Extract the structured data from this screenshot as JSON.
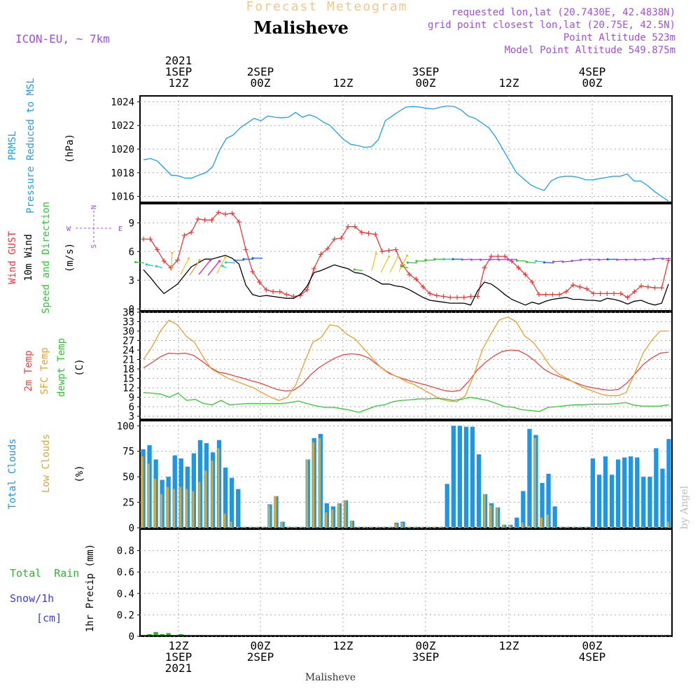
{
  "header": {
    "title": "Forecast Meteogram",
    "location": "Malisheve",
    "model": "ICON-EU, ~ 7km",
    "requested": "requested lon,lat (20.7430E, 42.4838N)",
    "gridpoint": "grid point closest lon,lat (20.75E, 42.5N)",
    "altitude": "Point Altitude 523m",
    "model_altitude": "Model Point Altitude 549.875m",
    "footer_location": "Malisheve",
    "credit": "by Angel"
  },
  "time_axis": {
    "top": [
      {
        "line1": "2021",
        "line2": "1SEP",
        "line3": "12Z"
      },
      {
        "line1": "",
        "line2": "2SEP",
        "line3": "00Z"
      },
      {
        "line1": "",
        "line2": "",
        "line3": "12Z"
      },
      {
        "line1": "",
        "line2": "3SEP",
        "line3": "00Z"
      },
      {
        "line1": "",
        "line2": "",
        "line3": "12Z"
      },
      {
        "line1": "",
        "line2": "4SEP",
        "line3": "00Z"
      }
    ],
    "bottom": [
      {
        "line1": "12Z",
        "line2": "1SEP",
        "line3": "2021"
      },
      {
        "line1": "00Z",
        "line2": "2SEP",
        "line3": ""
      },
      {
        "line1": "12Z",
        "line2": "",
        "line3": ""
      },
      {
        "line1": "00Z",
        "line2": "3SEP",
        "line3": ""
      },
      {
        "line1": "12Z",
        "line2": "",
        "line3": ""
      },
      {
        "line1": "00Z",
        "line2": "4SEP",
        "line3": ""
      }
    ]
  },
  "labels": {
    "pressure_1": "PRMSL",
    "pressure_2": "Pressure Reduced to MSL",
    "pressure_unit": "(hPa)",
    "wind_1": "Wind GUST",
    "wind_2": "10m Wind",
    "wind_3": "Speed and Direction",
    "wind_unit": "(m/s)",
    "compass_n": "N",
    "compass_s": "S",
    "compass_w": "W",
    "compass_e": "E",
    "temp_1": "2m Temp",
    "temp_2": "SFC Temp",
    "temp_3": "dewpt Temp",
    "temp_unit": "(C)",
    "cloud_1": "Total Clouds",
    "cloud_2": "Low Clouds",
    "cloud_unit": "(%)",
    "precip_1": "Total  Rain",
    "precip_2": "Snow/1h",
    "precip_3": "[cm]",
    "precip_unit": "1hr Precip (mm)"
  },
  "colors": {
    "pressure": "#1ea0e6",
    "gust": "#e63c3c",
    "wind": "#000000",
    "temp2m": "#e64646",
    "sfc": "#e6a032",
    "dewpt": "#32c832",
    "total_cloud": "#1e96e6",
    "low_cloud": "#d2aa3c",
    "rain": "#32b432",
    "snow": "#3c3cdc",
    "purple": "#a050dc",
    "title_faint": "#f0c88c"
  },
  "chart_data": [
    {
      "type": "line",
      "title": "PRMSL Pressure Reduced to MSL",
      "ylabel": "(hPa)",
      "ylim": [
        1015.5,
        1024.5
      ],
      "yticks": [
        1016,
        1018,
        1020,
        1022,
        1024
      ],
      "series": [
        {
          "name": "PRMSL",
          "values": [
            1019.1,
            1019.2,
            1019.0,
            1018.4,
            1017.8,
            1017.75,
            1017.55,
            1017.55,
            1017.8,
            1018.0,
            1018.5,
            1019.9,
            1020.9,
            1021.2,
            1021.8,
            1022.2,
            1022.6,
            1022.4,
            1022.8,
            1022.7,
            1022.65,
            1022.7,
            1023.1,
            1022.7,
            1022.9,
            1022.7,
            1022.3,
            1022.0,
            1021.4,
            1020.8,
            1020.4,
            1020.3,
            1020.15,
            1020.2,
            1020.8,
            1022.4,
            1022.8,
            1023.2,
            1023.55,
            1023.6,
            1023.55,
            1023.45,
            1023.4,
            1023.55,
            1023.65,
            1023.6,
            1023.3,
            1022.8,
            1022.6,
            1022.2,
            1021.8,
            1021.0,
            1020.0,
            1019.0,
            1018.0,
            1017.5,
            1017.0,
            1016.7,
            1016.5,
            1017.3,
            1017.6,
            1017.7,
            1017.7,
            1017.6,
            1017.4,
            1017.4,
            1017.5,
            1017.6,
            1017.7,
            1017.7,
            1017.9,
            1017.3,
            1017.3,
            1016.9,
            1016.4,
            1016.0,
            1015.6
          ]
        }
      ]
    },
    {
      "type": "line",
      "title": "Wind GUST / 10m Wind",
      "ylabel": "(m/s)",
      "ylim": [
        -0.2,
        11
      ],
      "yticks": [
        0,
        3,
        6,
        9
      ],
      "series": [
        {
          "name": "Wind GUST",
          "values": [
            7.3,
            7.3,
            6.2,
            5.0,
            4.3,
            5.1,
            7.7,
            8.0,
            9.4,
            9.3,
            9.3,
            10.1,
            9.9,
            10.0,
            9.1,
            6.2,
            3.9,
            2.8,
            2.0,
            1.8,
            1.8,
            1.5,
            1.3,
            1.4,
            2.0,
            4.2,
            5.7,
            6.3,
            7.3,
            7.4,
            8.6,
            8.6,
            8.0,
            7.9,
            7.8,
            6.0,
            6.1,
            6.2,
            4.6,
            3.6,
            3.1,
            2.3,
            1.6,
            1.4,
            1.3,
            1.2,
            1.2,
            1.2,
            1.3,
            1.3,
            4.3,
            5.5,
            5.5,
            5.5,
            5.0,
            4.3,
            3.6,
            2.8,
            1.5,
            1.5,
            1.5,
            1.5,
            1.8,
            2.5,
            2.3,
            2.1,
            1.6,
            1.6,
            1.6,
            1.6,
            1.6,
            1.2,
            1.8,
            2.4,
            2.3,
            2.2,
            2.2,
            5.1
          ]
        },
        {
          "name": "10m Wind",
          "values": [
            4.1,
            3.3,
            2.4,
            1.6,
            2.1,
            2.6,
            3.5,
            4.4,
            4.8,
            5.2,
            5.2,
            5.4,
            5.6,
            5.3,
            4.7,
            2.5,
            1.5,
            1.3,
            1.4,
            1.3,
            1.2,
            1.1,
            1.1,
            1.5,
            2.4,
            3.8,
            4.0,
            4.3,
            4.6,
            4.4,
            4.2,
            3.8,
            3.7,
            3.4,
            3.0,
            2.6,
            2.6,
            2.4,
            2.3,
            2.0,
            1.6,
            1.2,
            0.9,
            0.8,
            0.7,
            0.6,
            0.6,
            0.6,
            0.4,
            1.9,
            2.8,
            2.6,
            2.1,
            1.5,
            1.0,
            0.7,
            0.4,
            0.7,
            0.5,
            0.8,
            1.0,
            1.1,
            1.2,
            1.0,
            1.0,
            0.9,
            0.9,
            0.8,
            1.1,
            1.0,
            0.8,
            0.5,
            0.8,
            0.9,
            0.6,
            0.4,
            0.6,
            2.6
          ]
        }
      ]
    },
    {
      "type": "line",
      "title": "2m Temp / SFC Temp / dewpt Temp",
      "ylabel": "(C)",
      "ylim": [
        2,
        36
      ],
      "yticks": [
        3,
        6,
        9,
        12,
        15,
        18,
        21,
        24,
        27,
        30,
        33,
        36
      ],
      "series": [
        {
          "name": "2m Temp",
          "values": [
            18.3,
            20.0,
            21.8,
            23.0,
            22.8,
            23.0,
            22.3,
            20.5,
            18.5,
            17.0,
            16.5,
            15.7,
            15.0,
            14.2,
            13.5,
            12.5,
            11.5,
            11.0,
            11.2,
            13.0,
            16.0,
            18.3,
            20.0,
            21.5,
            22.5,
            22.8,
            22.5,
            21.5,
            19.5,
            17.5,
            16.0,
            15.0,
            14.2,
            13.5,
            12.8,
            12.0,
            11.2,
            10.8,
            11.2,
            14.0,
            17.5,
            20.0,
            22.0,
            23.5,
            24.0,
            23.8,
            22.5,
            20.5,
            18.0,
            16.5,
            15.5,
            14.5,
            13.5,
            12.5,
            12.0,
            11.5,
            11.2,
            11.5,
            13.5,
            16.5,
            19.5,
            21.5,
            23.0,
            23.3
          ]
        },
        {
          "name": "SFC Temp",
          "values": [
            21.0,
            25.0,
            30.0,
            33.5,
            32.0,
            28.5,
            26.5,
            22.0,
            18.0,
            16.5,
            15.0,
            14.0,
            13.0,
            12.0,
            10.5,
            9.0,
            8.0,
            9.0,
            13.0,
            20.0,
            26.5,
            28.0,
            32.0,
            31.5,
            29.0,
            27.5,
            24.5,
            21.5,
            18.5,
            16.5,
            15.5,
            14.0,
            13.0,
            11.5,
            10.0,
            8.5,
            7.8,
            7.6,
            9.5,
            16.0,
            24.0,
            29.0,
            33.5,
            34.5,
            33.0,
            28.5,
            26.5,
            23.0,
            19.0,
            16.5,
            15.0,
            13.5,
            12.0,
            11.0,
            10.0,
            9.5,
            9.5,
            10.5,
            16.5,
            23.0,
            27.0,
            30.0,
            30.0
          ]
        },
        {
          "name": "dewpt Temp",
          "values": [
            10.5,
            10.3,
            10.0,
            9.0,
            10.3,
            8.0,
            8.3,
            7.0,
            6.6,
            8.0,
            6.6,
            6.8,
            7.0,
            7.0,
            7.0,
            7.0,
            7.0,
            7.3,
            7.8,
            7.0,
            6.3,
            5.8,
            5.8,
            5.4,
            4.9,
            4.2,
            5.2,
            6.2,
            6.6,
            7.6,
            8.0,
            8.2,
            8.5,
            8.5,
            8.6,
            8.5,
            8.0,
            8.4,
            9.0,
            8.5,
            8.0,
            7.0,
            6.0,
            5.8,
            5.0,
            4.8,
            4.5,
            5.8,
            6.0,
            6.3,
            6.6,
            6.6,
            6.8,
            6.8,
            6.8,
            7.0,
            7.3,
            6.5,
            6.2,
            6.2,
            6.2,
            6.6
          ]
        }
      ]
    },
    {
      "type": "bar",
      "title": "Total Clouds / Low Clouds",
      "ylabel": "(%)",
      "ylim": [
        0,
        105
      ],
      "yticks": [
        0,
        25,
        50,
        75,
        100
      ],
      "series": [
        {
          "name": "Total Clouds",
          "values": [
            77,
            81,
            67,
            47,
            50,
            71,
            68,
            60,
            73,
            86,
            83,
            74,
            86,
            59,
            49,
            38,
            1,
            1,
            1,
            1,
            23,
            31,
            6,
            1,
            1,
            1,
            67,
            88,
            92,
            24,
            21,
            24,
            27,
            7,
            1,
            1,
            1,
            1,
            1,
            1,
            5,
            6,
            1,
            1,
            1,
            1,
            1,
            1,
            43,
            100,
            100,
            99,
            99,
            72,
            33,
            24,
            20,
            3,
            3,
            10,
            36,
            97,
            91,
            44,
            53,
            21,
            1,
            1,
            1,
            1,
            1,
            68,
            52,
            70,
            52,
            67,
            69,
            70,
            69,
            50,
            50,
            78,
            58,
            87
          ]
        },
        {
          "name": "Low Clouds",
          "values": [
            70,
            63,
            48,
            33,
            40,
            38,
            40,
            38,
            36,
            45,
            56,
            66,
            78,
            14,
            6,
            1,
            1,
            1,
            1,
            1,
            22,
            31,
            6,
            1,
            1,
            1,
            67,
            84,
            88,
            15,
            18,
            24,
            27,
            7,
            1,
            1,
            1,
            1,
            1,
            1,
            4,
            5,
            1,
            1,
            1,
            1,
            1,
            1,
            1,
            1,
            1,
            1,
            1,
            1,
            33,
            22,
            20,
            3,
            3,
            1,
            5,
            2,
            88,
            10,
            13,
            1,
            1,
            1,
            1,
            1,
            1,
            1,
            1,
            1,
            1,
            1,
            1,
            1,
            1,
            1,
            1,
            1,
            1,
            6
          ]
        }
      ]
    },
    {
      "type": "bar",
      "title": "1hr Precip",
      "ylabel": "1hr Precip (mm)",
      "ylim": [
        0,
        1.0
      ],
      "yticks": [
        0,
        0.2,
        0.4,
        0.6,
        0.8
      ],
      "series": [
        {
          "name": "Total Rain",
          "values": [
            0.0,
            0.02,
            0.04,
            0.02,
            0.03,
            0.0,
            0.02,
            0.0,
            0.0,
            0.0,
            0.0,
            0.0,
            0.0,
            0.0,
            0.0,
            0.0,
            0.0,
            0.0,
            0.0,
            0.0,
            0.0,
            0.0,
            0.0,
            0.0,
            0.0,
            0.0,
            0.0,
            0.0,
            0.0,
            0.0,
            0.0,
            0.0,
            0.0,
            0.0,
            0.0,
            0.0,
            0.0,
            0.0,
            0.0,
            0.0,
            0.0,
            0.0,
            0.0,
            0.0,
            0.0,
            0.0,
            0.0,
            0.0,
            0.0,
            0.0,
            0.0,
            0.0,
            0.0,
            0.0,
            0.0,
            0.0,
            0.0,
            0.0,
            0.0,
            0.0,
            0.0,
            0.0,
            0.0,
            0.0,
            0.0,
            0.0,
            0.0,
            0.0,
            0.0,
            0.0,
            0.0,
            0.0,
            0.0,
            0.0,
            0.0,
            0.0,
            0.0,
            0.0,
            0.0,
            0.0,
            0.0,
            0.0,
            0.01,
            0.0
          ]
        }
      ]
    }
  ]
}
